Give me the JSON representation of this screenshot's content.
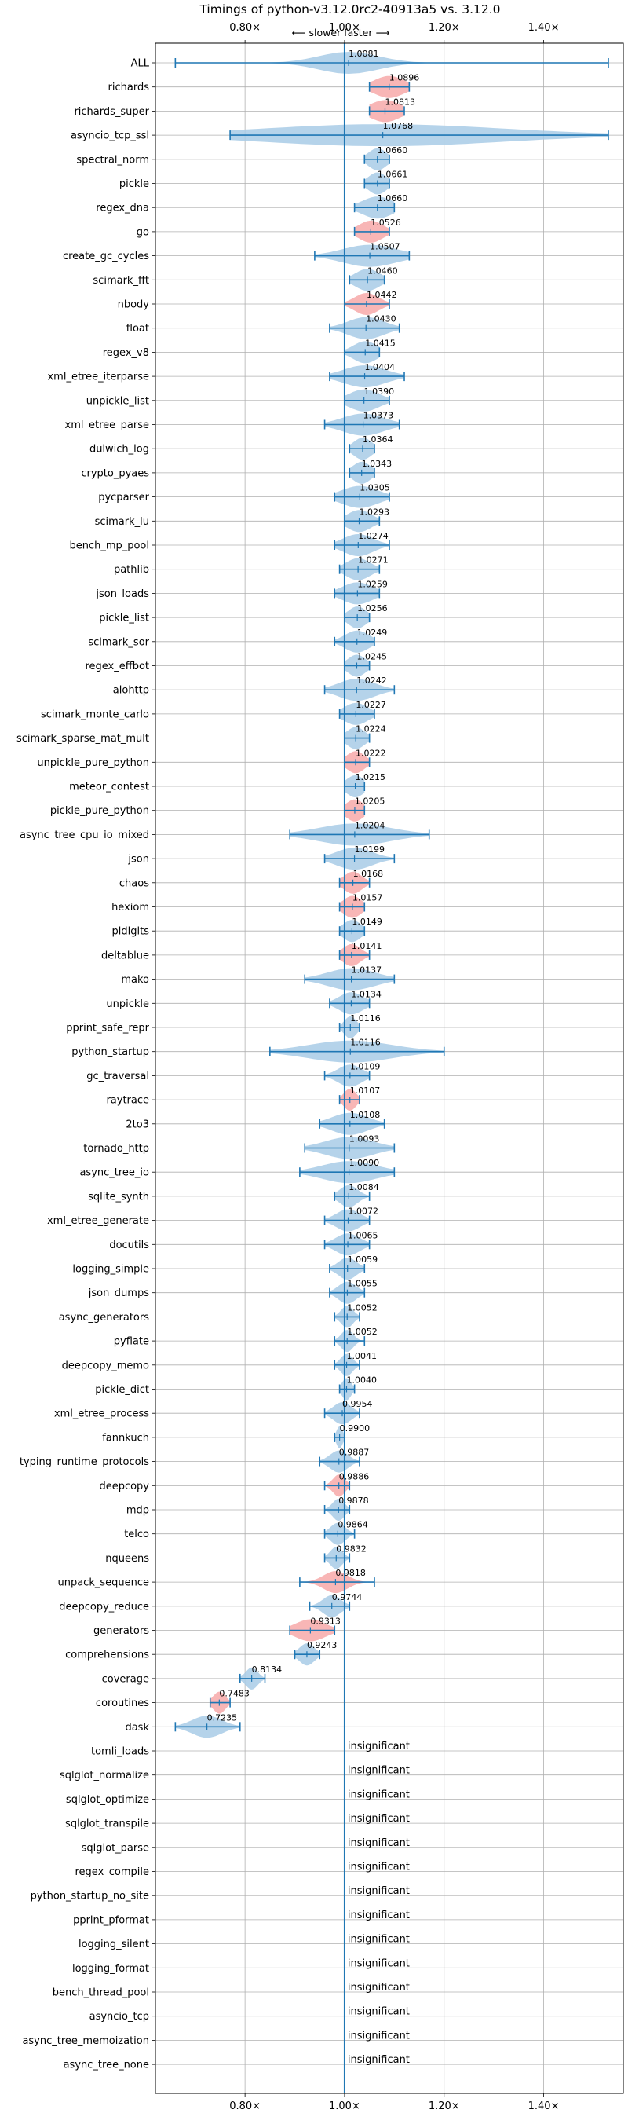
{
  "chart_data": {
    "type": "violin",
    "title": "Timings of python-v3.12.0rc2-40913a5 vs. 3.12.0",
    "subtitle": "⟵ slower   faster ⟶",
    "xlim": [
      0.62,
      1.56
    ],
    "xticks": [
      {
        "value": 0.8,
        "label": "0.80×"
      },
      {
        "value": 1.0,
        "label": "1.00×"
      },
      {
        "value": 1.2,
        "label": "1.20×"
      },
      {
        "value": 1.4,
        "label": "1.40×"
      }
    ],
    "grid": true,
    "reference_line": 1.0,
    "colors": {
      "neutral": "#a8cbe6",
      "highlight": "#f7a9a9",
      "line": "#1f77b4",
      "grid": "#b0b0b0"
    },
    "insignificant_label": "insignificant",
    "benchmarks": [
      {
        "name": "ALL",
        "value": 1.0081,
        "label": "1.0081",
        "significant": true,
        "highlight": false,
        "min": 0.66,
        "max": 1.53,
        "spread": 0.1
      },
      {
        "name": "richards",
        "value": 1.0896,
        "label": "1.0896",
        "significant": true,
        "highlight": true,
        "min": 1.05,
        "max": 1.13,
        "spread": 0.05
      },
      {
        "name": "richards_super",
        "value": 1.0813,
        "label": "1.0813",
        "significant": true,
        "highlight": true,
        "min": 1.05,
        "max": 1.12,
        "spread": 0.05
      },
      {
        "name": "asyncio_tcp_ssl",
        "value": 1.0768,
        "label": "1.0768",
        "significant": true,
        "highlight": false,
        "min": 0.77,
        "max": 1.53,
        "spread": 0.4
      },
      {
        "name": "spectral_norm",
        "value": 1.066,
        "label": "1.0660",
        "significant": true,
        "highlight": false,
        "min": 1.04,
        "max": 1.09,
        "spread": 0.03
      },
      {
        "name": "pickle",
        "value": 1.0661,
        "label": "1.0661",
        "significant": true,
        "highlight": false,
        "min": 1.04,
        "max": 1.09,
        "spread": 0.03
      },
      {
        "name": "regex_dna",
        "value": 1.066,
        "label": "1.0660",
        "significant": true,
        "highlight": false,
        "min": 1.02,
        "max": 1.1,
        "spread": 0.05
      },
      {
        "name": "go",
        "value": 1.0526,
        "label": "1.0526",
        "significant": true,
        "highlight": true,
        "min": 1.02,
        "max": 1.09,
        "spread": 0.04
      },
      {
        "name": "create_gc_cycles",
        "value": 1.0507,
        "label": "1.0507",
        "significant": true,
        "highlight": false,
        "min": 0.94,
        "max": 1.13,
        "spread": 0.09
      },
      {
        "name": "scimark_fft",
        "value": 1.046,
        "label": "1.0460",
        "significant": true,
        "highlight": false,
        "min": 1.01,
        "max": 1.08,
        "spread": 0.04
      },
      {
        "name": "nbody",
        "value": 1.0442,
        "label": "1.0442",
        "significant": true,
        "highlight": true,
        "min": 1.0,
        "max": 1.09,
        "spread": 0.04
      },
      {
        "name": "float",
        "value": 1.043,
        "label": "1.0430",
        "significant": true,
        "highlight": false,
        "min": 0.97,
        "max": 1.11,
        "spread": 0.06
      },
      {
        "name": "regex_v8",
        "value": 1.0415,
        "label": "1.0415",
        "significant": true,
        "highlight": false,
        "min": 1.0,
        "max": 1.07,
        "spread": 0.04
      },
      {
        "name": "xml_etree_iterparse",
        "value": 1.0404,
        "label": "1.0404",
        "significant": true,
        "highlight": false,
        "min": 0.97,
        "max": 1.12,
        "spread": 0.07
      },
      {
        "name": "unpickle_list",
        "value": 1.039,
        "label": "1.0390",
        "significant": true,
        "highlight": false,
        "min": 1.0,
        "max": 1.09,
        "spread": 0.05
      },
      {
        "name": "xml_etree_parse",
        "value": 1.0373,
        "label": "1.0373",
        "significant": true,
        "highlight": false,
        "min": 0.96,
        "max": 1.11,
        "spread": 0.07
      },
      {
        "name": "dulwich_log",
        "value": 1.0364,
        "label": "1.0364",
        "significant": true,
        "highlight": false,
        "min": 1.01,
        "max": 1.06,
        "spread": 0.03
      },
      {
        "name": "crypto_pyaes",
        "value": 1.0343,
        "label": "1.0343",
        "significant": true,
        "highlight": false,
        "min": 1.01,
        "max": 1.06,
        "spread": 0.03
      },
      {
        "name": "pycparser",
        "value": 1.0305,
        "label": "1.0305",
        "significant": true,
        "highlight": false,
        "min": 0.98,
        "max": 1.09,
        "spread": 0.06
      },
      {
        "name": "scimark_lu",
        "value": 1.0293,
        "label": "1.0293",
        "significant": true,
        "highlight": false,
        "min": 1.0,
        "max": 1.07,
        "spread": 0.04
      },
      {
        "name": "bench_mp_pool",
        "value": 1.0274,
        "label": "1.0274",
        "significant": true,
        "highlight": false,
        "min": 0.98,
        "max": 1.09,
        "spread": 0.05
      },
      {
        "name": "pathlib",
        "value": 1.0271,
        "label": "1.0271",
        "significant": true,
        "highlight": false,
        "min": 0.99,
        "max": 1.07,
        "spread": 0.04
      },
      {
        "name": "json_loads",
        "value": 1.0259,
        "label": "1.0259",
        "significant": true,
        "highlight": false,
        "min": 0.98,
        "max": 1.07,
        "spread": 0.05
      },
      {
        "name": "pickle_list",
        "value": 1.0256,
        "label": "1.0256",
        "significant": true,
        "highlight": false,
        "min": 1.0,
        "max": 1.05,
        "spread": 0.03
      },
      {
        "name": "scimark_sor",
        "value": 1.0249,
        "label": "1.0249",
        "significant": true,
        "highlight": false,
        "min": 0.98,
        "max": 1.06,
        "spread": 0.04
      },
      {
        "name": "regex_effbot",
        "value": 1.0245,
        "label": "1.0245",
        "significant": true,
        "highlight": false,
        "min": 1.0,
        "max": 1.05,
        "spread": 0.03
      },
      {
        "name": "aiohttp",
        "value": 1.0242,
        "label": "1.0242",
        "significant": true,
        "highlight": false,
        "min": 0.96,
        "max": 1.1,
        "spread": 0.06
      },
      {
        "name": "scimark_monte_carlo",
        "value": 1.0227,
        "label": "1.0227",
        "significant": true,
        "highlight": false,
        "min": 0.99,
        "max": 1.06,
        "spread": 0.04
      },
      {
        "name": "scimark_sparse_mat_mult",
        "value": 1.0224,
        "label": "1.0224",
        "significant": true,
        "highlight": false,
        "min": 1.0,
        "max": 1.05,
        "spread": 0.03
      },
      {
        "name": "unpickle_pure_python",
        "value": 1.0222,
        "label": "1.0222",
        "significant": true,
        "highlight": true,
        "min": 1.0,
        "max": 1.05,
        "spread": 0.03
      },
      {
        "name": "meteor_contest",
        "value": 1.0215,
        "label": "1.0215",
        "significant": true,
        "highlight": false,
        "min": 1.0,
        "max": 1.04,
        "spread": 0.03
      },
      {
        "name": "pickle_pure_python",
        "value": 1.0205,
        "label": "1.0205",
        "significant": true,
        "highlight": true,
        "min": 1.0,
        "max": 1.04,
        "spread": 0.03
      },
      {
        "name": "async_tree_cpu_io_mixed",
        "value": 1.0204,
        "label": "1.0204",
        "significant": true,
        "highlight": false,
        "min": 0.89,
        "max": 1.17,
        "spread": 0.12
      },
      {
        "name": "json",
        "value": 1.0199,
        "label": "1.0199",
        "significant": true,
        "highlight": false,
        "min": 0.96,
        "max": 1.1,
        "spread": 0.06
      },
      {
        "name": "chaos",
        "value": 1.0168,
        "label": "1.0168",
        "significant": true,
        "highlight": true,
        "min": 0.99,
        "max": 1.05,
        "spread": 0.03
      },
      {
        "name": "hexiom",
        "value": 1.0157,
        "label": "1.0157",
        "significant": true,
        "highlight": true,
        "min": 0.99,
        "max": 1.04,
        "spread": 0.03
      },
      {
        "name": "pidigits",
        "value": 1.0149,
        "label": "1.0149",
        "significant": true,
        "highlight": false,
        "min": 0.99,
        "max": 1.04,
        "spread": 0.03
      },
      {
        "name": "deltablue",
        "value": 1.0141,
        "label": "1.0141",
        "significant": true,
        "highlight": true,
        "min": 0.99,
        "max": 1.05,
        "spread": 0.03
      },
      {
        "name": "mako",
        "value": 1.0137,
        "label": "1.0137",
        "significant": true,
        "highlight": false,
        "min": 0.92,
        "max": 1.1,
        "spread": 0.08
      },
      {
        "name": "unpickle",
        "value": 1.0134,
        "label": "1.0134",
        "significant": true,
        "highlight": false,
        "min": 0.97,
        "max": 1.05,
        "spread": 0.04
      },
      {
        "name": "pprint_safe_repr",
        "value": 1.0116,
        "label": "1.0116",
        "significant": true,
        "highlight": false,
        "min": 0.99,
        "max": 1.03,
        "spread": 0.02
      },
      {
        "name": "python_startup",
        "value": 1.0116,
        "label": "1.0116",
        "significant": true,
        "highlight": false,
        "min": 0.85,
        "max": 1.2,
        "spread": 0.14
      },
      {
        "name": "gc_traversal",
        "value": 1.0109,
        "label": "1.0109",
        "significant": true,
        "highlight": false,
        "min": 0.96,
        "max": 1.05,
        "spread": 0.04
      },
      {
        "name": "raytrace",
        "value": 1.0107,
        "label": "1.0107",
        "significant": true,
        "highlight": true,
        "min": 0.99,
        "max": 1.03,
        "spread": 0.02
      },
      {
        "name": "2to3",
        "value": 1.0108,
        "label": "1.0108",
        "significant": true,
        "highlight": false,
        "min": 0.95,
        "max": 1.08,
        "spread": 0.06
      },
      {
        "name": "tornado_http",
        "value": 1.0093,
        "label": "1.0093",
        "significant": true,
        "highlight": false,
        "min": 0.92,
        "max": 1.1,
        "spread": 0.08
      },
      {
        "name": "async_tree_io",
        "value": 1.009,
        "label": "1.0090",
        "significant": true,
        "highlight": false,
        "min": 0.91,
        "max": 1.1,
        "spread": 0.09
      },
      {
        "name": "sqlite_synth",
        "value": 1.0084,
        "label": "1.0084",
        "significant": true,
        "highlight": false,
        "min": 0.98,
        "max": 1.05,
        "spread": 0.03
      },
      {
        "name": "xml_etree_generate",
        "value": 1.0072,
        "label": "1.0072",
        "significant": true,
        "highlight": false,
        "min": 0.96,
        "max": 1.05,
        "spread": 0.04
      },
      {
        "name": "docutils",
        "value": 1.0065,
        "label": "1.0065",
        "significant": true,
        "highlight": false,
        "min": 0.96,
        "max": 1.05,
        "spread": 0.04
      },
      {
        "name": "logging_simple",
        "value": 1.0059,
        "label": "1.0059",
        "significant": true,
        "highlight": false,
        "min": 0.97,
        "max": 1.04,
        "spread": 0.03
      },
      {
        "name": "json_dumps",
        "value": 1.0055,
        "label": "1.0055",
        "significant": true,
        "highlight": false,
        "min": 0.97,
        "max": 1.04,
        "spread": 0.03
      },
      {
        "name": "async_generators",
        "value": 1.0052,
        "label": "1.0052",
        "significant": true,
        "highlight": false,
        "min": 0.98,
        "max": 1.03,
        "spread": 0.02
      },
      {
        "name": "pyflate",
        "value": 1.0052,
        "label": "1.0052",
        "significant": true,
        "highlight": false,
        "min": 0.98,
        "max": 1.04,
        "spread": 0.02
      },
      {
        "name": "deepcopy_memo",
        "value": 1.0041,
        "label": "1.0041",
        "significant": true,
        "highlight": false,
        "min": 0.98,
        "max": 1.03,
        "spread": 0.02
      },
      {
        "name": "pickle_dict",
        "value": 1.004,
        "label": "1.0040",
        "significant": true,
        "highlight": false,
        "min": 0.99,
        "max": 1.02,
        "spread": 0.015
      },
      {
        "name": "xml_etree_process",
        "value": 0.9954,
        "label": "0.9954",
        "significant": true,
        "highlight": false,
        "min": 0.96,
        "max": 1.03,
        "spread": 0.03
      },
      {
        "name": "fannkuch",
        "value": 0.99,
        "label": "0.9900",
        "significant": true,
        "highlight": false,
        "min": 0.98,
        "max": 1.0,
        "spread": 0.01
      },
      {
        "name": "typing_runtime_protocols",
        "value": 0.9887,
        "label": "0.9887",
        "significant": true,
        "highlight": false,
        "min": 0.95,
        "max": 1.03,
        "spread": 0.03
      },
      {
        "name": "deepcopy",
        "value": 0.9886,
        "label": "0.9886",
        "significant": true,
        "highlight": true,
        "min": 0.96,
        "max": 1.01,
        "spread": 0.02
      },
      {
        "name": "mdp",
        "value": 0.9878,
        "label": "0.9878",
        "significant": true,
        "highlight": false,
        "min": 0.96,
        "max": 1.01,
        "spread": 0.02
      },
      {
        "name": "telco",
        "value": 0.9864,
        "label": "0.9864",
        "significant": true,
        "highlight": false,
        "min": 0.96,
        "max": 1.02,
        "spread": 0.025
      },
      {
        "name": "nqueens",
        "value": 0.9832,
        "label": "0.9832",
        "significant": true,
        "highlight": false,
        "min": 0.96,
        "max": 1.01,
        "spread": 0.02
      },
      {
        "name": "unpack_sequence",
        "value": 0.9818,
        "label": "0.9818",
        "significant": true,
        "highlight": true,
        "min": 0.91,
        "max": 1.06,
        "spread": 0.04
      },
      {
        "name": "deepcopy_reduce",
        "value": 0.9744,
        "label": "0.9744",
        "significant": true,
        "highlight": false,
        "min": 0.93,
        "max": 1.01,
        "spread": 0.03
      },
      {
        "name": "generators",
        "value": 0.9313,
        "label": "0.9313",
        "significant": true,
        "highlight": true,
        "min": 0.89,
        "max": 0.98,
        "spread": 0.05
      },
      {
        "name": "comprehensions",
        "value": 0.9243,
        "label": "0.9243",
        "significant": true,
        "highlight": false,
        "min": 0.9,
        "max": 0.95,
        "spread": 0.025
      },
      {
        "name": "coverage",
        "value": 0.8134,
        "label": "0.8134",
        "significant": true,
        "highlight": false,
        "min": 0.79,
        "max": 0.84,
        "spread": 0.02
      },
      {
        "name": "coroutines",
        "value": 0.7483,
        "label": "0.7483",
        "significant": true,
        "highlight": true,
        "min": 0.73,
        "max": 0.77,
        "spread": 0.02
      },
      {
        "name": "dask",
        "value": 0.7235,
        "label": "0.7235",
        "significant": true,
        "highlight": false,
        "min": 0.66,
        "max": 0.79,
        "spread": 0.05
      },
      {
        "name": "tomli_loads",
        "significant": false
      },
      {
        "name": "sqlglot_normalize",
        "significant": false
      },
      {
        "name": "sqlglot_optimize",
        "significant": false
      },
      {
        "name": "sqlglot_transpile",
        "significant": false
      },
      {
        "name": "sqlglot_parse",
        "significant": false
      },
      {
        "name": "regex_compile",
        "significant": false
      },
      {
        "name": "python_startup_no_site",
        "significant": false
      },
      {
        "name": "pprint_pformat",
        "significant": false
      },
      {
        "name": "logging_silent",
        "significant": false
      },
      {
        "name": "logging_format",
        "significant": false
      },
      {
        "name": "bench_thread_pool",
        "significant": false
      },
      {
        "name": "asyncio_tcp",
        "significant": false
      },
      {
        "name": "async_tree_memoization",
        "significant": false
      },
      {
        "name": "async_tree_none",
        "significant": false
      }
    ]
  }
}
